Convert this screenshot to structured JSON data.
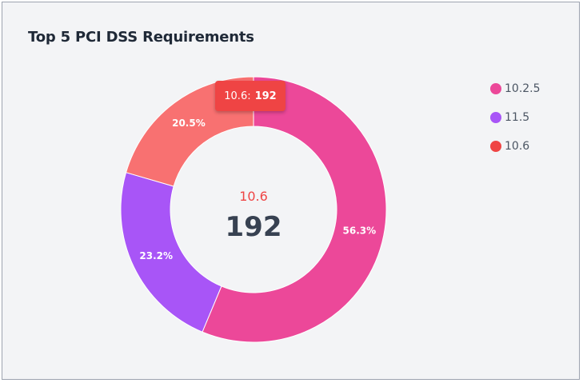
{
  "card": {
    "title": "Top 5 PCI DSS Requirements"
  },
  "chart_data": {
    "type": "pie",
    "variant": "donut",
    "title": "Top 5 PCI DSS Requirements",
    "slices": [
      {
        "name": "10.2.5",
        "percent": 56.3,
        "percent_label": "56.3%",
        "color": "#ec4899"
      },
      {
        "name": "11.5",
        "percent": 23.2,
        "percent_label": "23.2%",
        "color": "#a855f7"
      },
      {
        "name": "10.6",
        "percent": 20.5,
        "percent_label": "20.5%",
        "color": "#f87171"
      }
    ],
    "legend_position": "right",
    "center": {
      "label": "10.6",
      "value": "192",
      "label_color": "#ef4444"
    },
    "tooltip": {
      "label": "10.6:",
      "value": "192"
    }
  }
}
